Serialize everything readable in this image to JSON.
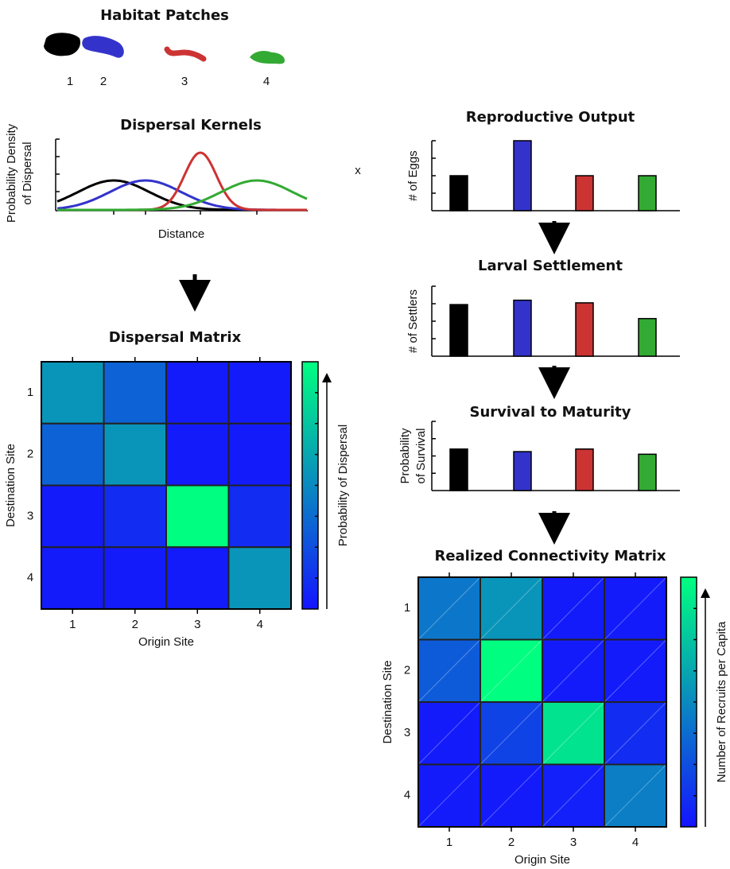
{
  "habitat_patches": {
    "title": "Habitat Patches",
    "labels": [
      "1",
      "2",
      "3",
      "4"
    ]
  },
  "dispersal_kernels": {
    "title": "Dispersal Kernels",
    "y_label": [
      "Probability Density",
      "of Dispersal"
    ],
    "x_label": "Distance"
  },
  "operator": "x",
  "dispersal_matrix": {
    "title": "Dispersal Matrix",
    "x_labels": [
      "1",
      "2",
      "3",
      "4"
    ],
    "y_labels": [
      "1",
      "2",
      "3",
      "4"
    ],
    "x_label": "Origin Site",
    "y_label": "Destination Site",
    "colorbar_label": "Probability of Dispersal",
    "clim": [
      0,
      1
    ],
    "colormap": [
      "#1414ff",
      "#00ff80"
    ],
    "values": [
      [
        0.55,
        0.33,
        0.03,
        0.03
      ],
      [
        0.33,
        0.55,
        0.03,
        0.03
      ],
      [
        0.03,
        0.1,
        1.0,
        0.1
      ],
      [
        0.03,
        0.03,
        0.03,
        0.55
      ]
    ]
  },
  "reproductive_output": {
    "title": "Reproductive Output",
    "y_label": [
      "# of Eggs"
    ],
    "ylim": [
      0,
      4
    ],
    "values": [
      2,
      4,
      2,
      2
    ],
    "colors": [
      "#000000",
      "#3333cc",
      "#cc3333",
      "#33aa33"
    ]
  },
  "larval_settlement": {
    "title": "Larval Settlement",
    "y_label": [
      "# of Settlers"
    ],
    "ylim": [
      0,
      4
    ],
    "values": [
      2.95,
      3.2,
      3.05,
      2.15
    ],
    "colors": [
      "#000000",
      "#3333cc",
      "#cc3333",
      "#33aa33"
    ]
  },
  "survival_to_maturity": {
    "title": "Survival to Maturity",
    "y_label": [
      "Probability",
      "of Survival"
    ],
    "ylim": [
      0,
      4
    ],
    "values": [
      2.4,
      2.25,
      2.4,
      2.1
    ],
    "colors": [
      "#000000",
      "#3333cc",
      "#cc3333",
      "#33aa33"
    ]
  },
  "realized_connectivity_matrix": {
    "title": "Realized Connectivity Matrix",
    "x_labels": [
      "1",
      "2",
      "3",
      "4"
    ],
    "y_labels": [
      "1",
      "2",
      "3",
      "4"
    ],
    "x_label": "Origin Site",
    "y_label": "Destination Site",
    "colorbar_label": "Number of Recruits per Capita",
    "clim": [
      0,
      1
    ],
    "colormap": [
      "#1414ff",
      "#00ff80"
    ],
    "values": [
      [
        0.42,
        0.55,
        0.03,
        0.03
      ],
      [
        0.3,
        1.0,
        0.03,
        0.03
      ],
      [
        0.03,
        0.2,
        0.88,
        0.1
      ],
      [
        0.03,
        0.03,
        0.05,
        0.45
      ]
    ]
  }
}
